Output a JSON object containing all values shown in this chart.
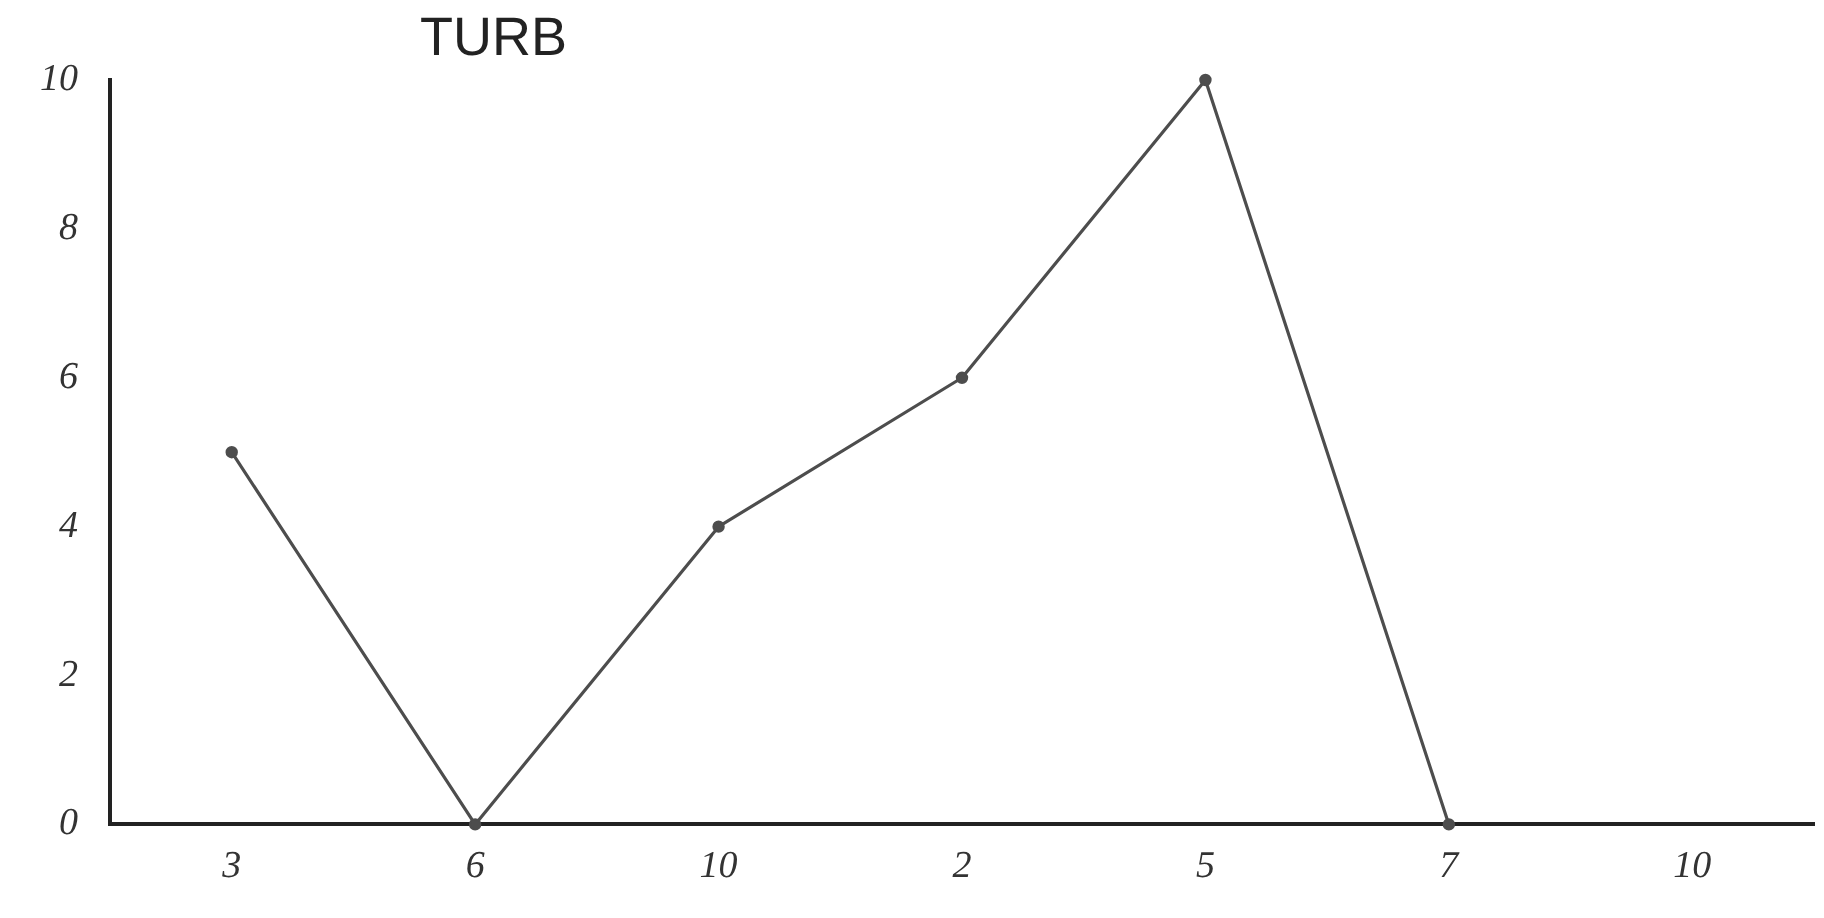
{
  "chart_data": {
    "type": "line",
    "title": "TURB",
    "categories": [
      "3",
      "6",
      "10",
      "2",
      "5",
      "7",
      "10"
    ],
    "values": [
      5,
      0,
      4,
      6,
      10,
      0,
      null
    ],
    "color": "#4d4d4d",
    "ylim": [
      0,
      10
    ],
    "yticks": [
      0,
      2,
      4,
      6,
      8,
      10
    ],
    "marker": "circle",
    "line_style": "solid"
  }
}
